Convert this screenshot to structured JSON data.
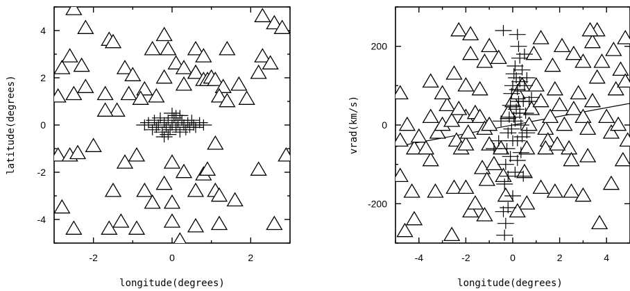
{
  "chart_data": [
    {
      "type": "scatter",
      "xlabel": "longitude(degrees)",
      "ylabel": "latitude(degrees)",
      "xlim": [
        -3.0,
        3.0
      ],
      "ylim": [
        -5.0,
        5.0
      ],
      "xticks": [
        -2,
        0,
        2
      ],
      "xtick_labels": [
        "-2",
        "0",
        "2"
      ],
      "yticks": [
        -4,
        -2,
        0,
        2,
        4
      ],
      "ytick_labels": [
        "-4",
        "-2",
        "0",
        "2",
        "4"
      ],
      "series": [
        {
          "marker": "triangle",
          "points": [
            [
              -2.5,
              4.9
            ],
            [
              -2.2,
              4.1
            ],
            [
              -1.6,
              3.6
            ],
            [
              -1.5,
              3.5
            ],
            [
              -2.8,
              2.4
            ],
            [
              -2.6,
              2.9
            ],
            [
              -2.3,
              2.5
            ],
            [
              -1.2,
              2.4
            ],
            [
              -1.0,
              2.1
            ],
            [
              -2.2,
              1.6
            ],
            [
              -2.9,
              1.2
            ],
            [
              -2.5,
              1.3
            ],
            [
              -1.7,
              1.3
            ],
            [
              -1.4,
              0.6
            ],
            [
              -1.7,
              0.6
            ],
            [
              -1.1,
              1.3
            ],
            [
              -0.7,
              1.5
            ],
            [
              -0.8,
              1.1
            ],
            [
              -0.4,
              1.2
            ],
            [
              -0.2,
              3.8
            ],
            [
              -0.5,
              3.2
            ],
            [
              -0.1,
              3.2
            ],
            [
              0.1,
              2.6
            ],
            [
              0.3,
              2.4
            ],
            [
              -0.2,
              2.0
            ],
            [
              0.3,
              1.7
            ],
            [
              0.6,
              2.2
            ],
            [
              0.6,
              3.2
            ],
            [
              0.8,
              2.9
            ],
            [
              0.6,
              2.2
            ],
            [
              0.8,
              1.9
            ],
            [
              0.9,
              1.9
            ],
            [
              1.0,
              2.0
            ],
            [
              1.1,
              1.9
            ],
            [
              1.3,
              1.6
            ],
            [
              1.7,
              1.7
            ],
            [
              2.2,
              2.2
            ],
            [
              1.4,
              3.2
            ],
            [
              1.2,
              1.2
            ],
            [
              1.4,
              1.0
            ],
            [
              2.3,
              4.6
            ],
            [
              2.6,
              4.3
            ],
            [
              2.8,
              4.1
            ],
            [
              2.3,
              2.9
            ],
            [
              2.5,
              2.6
            ],
            [
              1.9,
              1.1
            ],
            [
              -2.9,
              -1.3
            ],
            [
              -2.6,
              -1.3
            ],
            [
              -2.4,
              -1.2
            ],
            [
              -2.0,
              -0.9
            ],
            [
              -1.2,
              -1.6
            ],
            [
              -0.9,
              -1.3
            ],
            [
              0.0,
              -1.6
            ],
            [
              1.1,
              -0.8
            ],
            [
              0.3,
              -2.0
            ],
            [
              0.8,
              -2.1
            ],
            [
              0.9,
              -1.9
            ],
            [
              -0.7,
              -2.8
            ],
            [
              -0.5,
              -3.3
            ],
            [
              -0.2,
              -2.5
            ],
            [
              0.0,
              -3.3
            ],
            [
              0.6,
              -2.8
            ],
            [
              1.1,
              -2.8
            ],
            [
              1.2,
              -3.0
            ],
            [
              -1.5,
              -2.8
            ],
            [
              -1.3,
              -4.1
            ],
            [
              -1.6,
              -4.4
            ],
            [
              -0.9,
              -4.4
            ],
            [
              0.0,
              -4.1
            ],
            [
              0.6,
              -4.3
            ],
            [
              1.2,
              -4.2
            ],
            [
              1.6,
              -3.2
            ],
            [
              2.2,
              -1.9
            ],
            [
              2.6,
              -4.2
            ],
            [
              2.9,
              -1.3
            ],
            [
              -2.8,
              -3.5
            ],
            [
              -2.5,
              -4.4
            ],
            [
              0.2,
              -4.9
            ]
          ]
        },
        {
          "marker": "cross",
          "points": [
            [
              -0.6,
              0.1
            ],
            [
              -0.5,
              -0.2
            ],
            [
              -0.45,
              0.2
            ],
            [
              -0.4,
              -0.1
            ],
            [
              -0.35,
              0.0
            ],
            [
              -0.3,
              0.3
            ],
            [
              -0.25,
              -0.3
            ],
            [
              -0.2,
              0.1
            ],
            [
              -0.15,
              -0.1
            ],
            [
              -0.1,
              0.2
            ],
            [
              -0.05,
              -0.2
            ],
            [
              0.0,
              0.0
            ],
            [
              0.05,
              0.3
            ],
            [
              0.1,
              -0.1
            ],
            [
              0.15,
              0.1
            ],
            [
              0.2,
              -0.3
            ],
            [
              0.25,
              0.2
            ],
            [
              0.3,
              0.0
            ],
            [
              0.35,
              -0.2
            ],
            [
              0.4,
              0.1
            ],
            [
              0.45,
              -0.1
            ],
            [
              0.5,
              0.2
            ],
            [
              0.55,
              0.0
            ],
            [
              0.6,
              -0.1
            ],
            [
              0.7,
              0.1
            ],
            [
              0.8,
              0.0
            ],
            [
              -0.7,
              0.0
            ],
            [
              0.1,
              0.4
            ],
            [
              -0.1,
              -0.4
            ],
            [
              0.0,
              0.5
            ],
            [
              0.2,
              0.4
            ],
            [
              -0.2,
              -0.5
            ]
          ]
        }
      ]
    },
    {
      "type": "scatter",
      "xlabel": "longitude(degrees)",
      "ylabel": "vrad(km/s)",
      "xlim": [
        -5.0,
        5.0
      ],
      "ylim": [
        -300,
        300
      ],
      "xticks": [
        -4,
        -2,
        0,
        2,
        4
      ],
      "xtick_labels": [
        "-4",
        "-2",
        "0",
        "2",
        "4"
      ],
      "yticks": [
        -200,
        0,
        200
      ],
      "ytick_labels": [
        "-200",
        "0",
        "200"
      ],
      "fit_line": [
        [
          -5.0,
          -55
        ],
        [
          5.0,
          55
        ]
      ],
      "series": [
        {
          "marker": "triangle",
          "points": [
            [
              -4.8,
              80
            ],
            [
              -4.8,
              -40
            ],
            [
              -4.5,
              0
            ],
            [
              -4.2,
              -60
            ],
            [
              -4.3,
              -170
            ],
            [
              -4.2,
              -240
            ],
            [
              -4.6,
              -270
            ],
            [
              -4.8,
              -130
            ],
            [
              -4.0,
              -30
            ],
            [
              -3.5,
              -90
            ],
            [
              -3.7,
              -60
            ],
            [
              -3.5,
              20
            ],
            [
              -3.2,
              -20
            ],
            [
              -3.0,
              0
            ],
            [
              -2.8,
              50
            ],
            [
              -2.6,
              10
            ],
            [
              -2.4,
              -40
            ],
            [
              -2.2,
              -60
            ],
            [
              -2.0,
              -50
            ],
            [
              -2.0,
              20
            ],
            [
              -1.9,
              -20
            ],
            [
              -1.6,
              30
            ],
            [
              -1.4,
              20
            ],
            [
              -1.2,
              -10
            ],
            [
              -1.0,
              -50
            ],
            [
              -1.0,
              0
            ],
            [
              -3.5,
              110
            ],
            [
              -3.0,
              80
            ],
            [
              -2.5,
              130
            ],
            [
              -2.3,
              40
            ],
            [
              -2.0,
              100
            ],
            [
              -1.8,
              180
            ],
            [
              -1.4,
              90
            ],
            [
              -1.2,
              160
            ],
            [
              -2.3,
              240
            ],
            [
              -1.8,
              230
            ],
            [
              -1.0,
              200
            ],
            [
              -0.6,
              170
            ],
            [
              -2.5,
              -160
            ],
            [
              -2.0,
              -160
            ],
            [
              -1.8,
              -220
            ],
            [
              -1.6,
              -200
            ],
            [
              -1.3,
              -110
            ],
            [
              -1.1,
              -140
            ],
            [
              -0.8,
              -100
            ],
            [
              -2.6,
              -280
            ],
            [
              -1.2,
              -230
            ],
            [
              -3.3,
              -170
            ],
            [
              -0.5,
              -60
            ],
            [
              -0.4,
              -130
            ],
            [
              -0.2,
              30
            ],
            [
              0.0,
              60
            ],
            [
              0.2,
              80
            ],
            [
              0.4,
              100
            ],
            [
              0.5,
              -120
            ],
            [
              0.6,
              -60
            ],
            [
              0.7,
              0
            ],
            [
              0.8,
              40
            ],
            [
              1.0,
              100
            ],
            [
              1.2,
              60
            ],
            [
              1.4,
              -10
            ],
            [
              1.5,
              -40
            ],
            [
              1.6,
              20
            ],
            [
              1.8,
              90
            ],
            [
              2.0,
              50
            ],
            [
              2.2,
              0
            ],
            [
              2.4,
              -60
            ],
            [
              2.5,
              -90
            ],
            [
              2.6,
              40
            ],
            [
              2.8,
              80
            ],
            [
              3.0,
              20
            ],
            [
              3.2,
              -10
            ],
            [
              3.4,
              60
            ],
            [
              3.6,
              120
            ],
            [
              3.8,
              160
            ],
            [
              4.0,
              20
            ],
            [
              4.2,
              -20
            ],
            [
              4.4,
              90
            ],
            [
              4.6,
              140
            ],
            [
              4.8,
              110
            ],
            [
              4.9,
              -40
            ],
            [
              4.7,
              -90
            ],
            [
              4.5,
              0
            ],
            [
              4.2,
              -150
            ],
            [
              3.7,
              -250
            ],
            [
              3.2,
              -80
            ],
            [
              3.0,
              160
            ],
            [
              3.4,
              210
            ],
            [
              3.6,
              240
            ],
            [
              2.6,
              180
            ],
            [
              2.1,
              200
            ],
            [
              1.7,
              150
            ],
            [
              1.2,
              220
            ],
            [
              0.9,
              180
            ],
            [
              0.6,
              -200
            ],
            [
              1.2,
              -160
            ],
            [
              1.8,
              -170
            ],
            [
              2.5,
              -170
            ],
            [
              3.0,
              -180
            ],
            [
              3.3,
              240
            ],
            [
              4.3,
              190
            ],
            [
              4.8,
              220
            ],
            [
              -0.3,
              -180
            ],
            [
              0.2,
              -220
            ],
            [
              1.4,
              -60
            ],
            [
              1.9,
              -50
            ]
          ]
        },
        {
          "marker": "cross",
          "points": [
            [
              -0.35,
              -150
            ],
            [
              -0.3,
              -100
            ],
            [
              -0.25,
              -60
            ],
            [
              -0.2,
              -20
            ],
            [
              -0.15,
              20
            ],
            [
              -0.1,
              50
            ],
            [
              -0.05,
              80
            ],
            [
              0.0,
              100
            ],
            [
              0.05,
              130
            ],
            [
              0.1,
              150
            ],
            [
              0.15,
              120
            ],
            [
              0.2,
              90
            ],
            [
              0.25,
              60
            ],
            [
              0.3,
              30
            ],
            [
              0.35,
              0
            ],
            [
              0.4,
              -30
            ],
            [
              0.45,
              60
            ],
            [
              0.5,
              100
            ],
            [
              0.55,
              30
            ],
            [
              0.6,
              -20
            ],
            [
              -0.4,
              -220
            ],
            [
              -0.3,
              -250
            ],
            [
              -0.2,
              -210
            ],
            [
              0.0,
              -180
            ],
            [
              0.1,
              -120
            ],
            [
              0.2,
              -40
            ],
            [
              0.25,
              200
            ],
            [
              0.3,
              170
            ],
            [
              -0.2,
              -130
            ],
            [
              -0.1,
              -80
            ],
            [
              0.0,
              -40
            ],
            [
              0.1,
              10
            ],
            [
              0.15,
              40
            ],
            [
              -0.05,
              -10
            ],
            [
              0.05,
              20
            ],
            [
              0.3,
              110
            ],
            [
              0.4,
              140
            ],
            [
              0.5,
              180
            ],
            [
              -0.35,
              -280
            ],
            [
              0.2,
              -90
            ],
            [
              0.35,
              -70
            ],
            [
              0.45,
              -130
            ],
            [
              -0.5,
              10
            ],
            [
              0.6,
              120
            ],
            [
              0.7,
              60
            ],
            [
              -0.6,
              -40
            ],
            [
              0.8,
              70
            ],
            [
              -0.8,
              -60
            ],
            [
              -0.4,
              240
            ],
            [
              0.2,
              230
            ]
          ]
        }
      ]
    }
  ]
}
